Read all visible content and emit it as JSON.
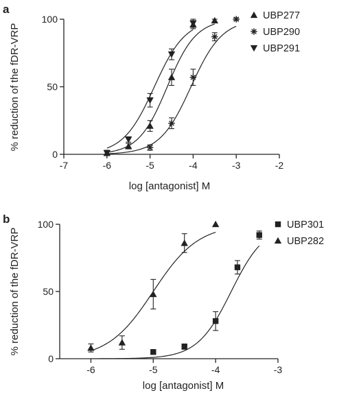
{
  "chart_data": [
    {
      "panel": "a",
      "type": "scatter",
      "title": "",
      "xlabel": "log [antagonist] M",
      "ylabel": "% reduction of the fDR-VRP",
      "xlim": [
        -7,
        -2
      ],
      "ylim": [
        0,
        100
      ],
      "xticks": [
        -7,
        -6,
        -5,
        -4,
        -3,
        -2
      ],
      "yticks": [
        0,
        50,
        100
      ],
      "legend": "top-right",
      "series": [
        {
          "name": "UBP277",
          "marker": "triangle-up",
          "x": [
            -6,
            -5.5,
            -5,
            -4.5,
            -4,
            -3.5
          ],
          "y": [
            1,
            6,
            21,
            57,
            96,
            99
          ],
          "err": [
            2,
            2,
            4,
            6,
            3,
            1
          ],
          "fit": {
            "ec50_log": -4.6,
            "hill": 1.3
          }
        },
        {
          "name": "UBP290",
          "marker": "asterisk",
          "x": [
            -5,
            -4.5,
            -4,
            -3.5,
            -3
          ],
          "y": [
            5,
            23,
            57,
            87,
            100
          ],
          "err": [
            2,
            4,
            6,
            3,
            1
          ],
          "fit": {
            "ec50_log": -4.05,
            "hill": 1.2
          }
        },
        {
          "name": "UBP291",
          "marker": "triangle-down",
          "x": [
            -6,
            -5.5,
            -5,
            -4.5,
            -4
          ],
          "y": [
            1,
            11,
            40,
            74,
            97
          ],
          "err": [
            2,
            2,
            5,
            4,
            3
          ],
          "fit": {
            "ec50_log": -4.9,
            "hill": 1.2
          }
        }
      ]
    },
    {
      "panel": "b",
      "type": "scatter",
      "title": "",
      "xlabel": "log [antagonist] M",
      "ylabel": "% reduction of the fDR-VRP",
      "xlim": [
        -6.5,
        -3
      ],
      "ylim": [
        0,
        100
      ],
      "xticks": [
        -6,
        -5,
        -4,
        -3
      ],
      "yticks": [
        0,
        50,
        100
      ],
      "legend": "top-right",
      "series": [
        {
          "name": "UBP301",
          "marker": "square",
          "x": [
            -5,
            -4.5,
            -4,
            -3.65,
            -3.3
          ],
          "y": [
            5,
            9,
            28,
            68,
            92
          ],
          "err": [
            0,
            2,
            7,
            5,
            3
          ],
          "fit": {
            "ec50_log": -3.75,
            "hill": 1.6
          }
        },
        {
          "name": "UBP282",
          "marker": "triangle-up",
          "x": [
            -6,
            -5.5,
            -5,
            -4.5,
            -4
          ],
          "y": [
            8,
            12,
            48,
            86,
            100
          ],
          "err": [
            3,
            5,
            11,
            7,
            0
          ],
          "fit": {
            "ec50_log": -5.0,
            "hill": 1.2
          }
        }
      ]
    }
  ]
}
